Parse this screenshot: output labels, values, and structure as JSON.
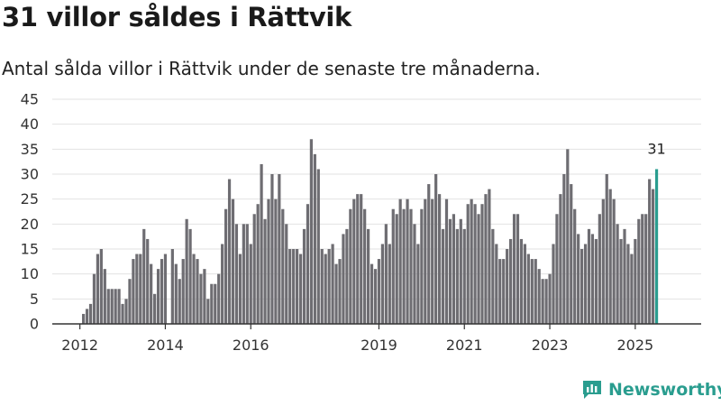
{
  "title": "31 villor såldes i Rättvik",
  "subtitle": "Antal sålda villor i Rättvik under de senaste tre månaderna.",
  "brand": "Newsworthy",
  "colors": {
    "bar": "#6e6d72",
    "highlight": "#2a9d8f",
    "grid": "#e2e2e2",
    "axis": "#333333"
  },
  "chart_data": {
    "type": "bar",
    "title": "31 villor såldes i Rättvik",
    "subtitle": "Antal sålda villor i Rättvik under de senaste tre månaderna.",
    "xlabel": "",
    "ylabel": "",
    "ylim": [
      0,
      45
    ],
    "yticks": [
      0,
      5,
      10,
      15,
      20,
      25,
      30,
      35,
      40,
      45
    ],
    "xtick_labels": [
      "2012",
      "2014",
      "2016",
      "2019",
      "2021",
      "2023",
      "2025"
    ],
    "grid": true,
    "legend": "none",
    "frequency": "monthly",
    "first_period": "2012-02",
    "last_period": "2025-11",
    "highlight_last": true,
    "last_label": "31",
    "values": [
      2,
      3,
      4,
      10,
      14,
      15,
      11,
      7,
      7,
      7,
      7,
      4,
      5,
      9,
      13,
      14,
      14,
      19,
      17,
      12,
      6,
      11,
      13,
      14,
      0,
      15,
      12,
      9,
      13,
      21,
      19,
      14,
      13,
      10,
      11,
      5,
      8,
      8,
      10,
      16,
      23,
      29,
      25,
      20,
      14,
      20,
      20,
      16,
      22,
      24,
      32,
      21,
      25,
      30,
      25,
      30,
      23,
      20,
      15,
      15,
      15,
      14,
      19,
      24,
      37,
      34,
      31,
      15,
      14,
      15,
      16,
      12,
      13,
      18,
      19,
      23,
      25,
      26,
      26,
      23,
      19,
      12,
      11,
      13,
      16,
      20,
      16,
      23,
      22,
      25,
      23,
      25,
      23,
      20,
      16,
      23,
      25,
      28,
      25,
      30,
      26,
      19,
      25,
      21,
      22,
      19,
      21,
      19,
      24,
      25,
      24,
      22,
      24,
      26,
      27,
      19,
      16,
      13,
      13,
      15,
      17,
      22,
      22,
      17,
      16,
      14,
      13,
      13,
      11,
      9,
      9,
      10,
      16,
      22,
      26,
      30,
      35,
      28,
      23,
      18,
      15,
      16,
      19,
      18,
      17,
      22,
      25,
      30,
      27,
      25,
      20,
      17,
      19,
      16,
      14,
      17,
      21,
      22,
      22,
      29,
      27,
      31
    ]
  }
}
